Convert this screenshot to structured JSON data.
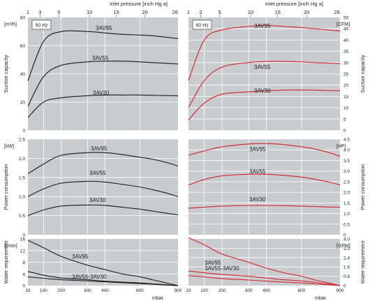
{
  "chart_data": [
    {
      "type": "line",
      "variant": "50 Hz",
      "hz_label": "50 Hz",
      "top_axis_title": "inlet pressure [inch Hg a]",
      "top_ticks": [
        "1",
        "3",
        "5",
        "10",
        "15",
        "20",
        "26"
      ],
      "x_ticks": [
        "33",
        "100",
        "200",
        "300",
        "400",
        "600",
        "900"
      ],
      "x_unit": "mbar",
      "x": [
        33,
        100,
        200,
        300,
        400,
        500,
        600,
        700,
        800,
        900
      ],
      "panels": [
        {
          "id": "suction",
          "ylabel": "Suction capacity",
          "yunit": "[m³/h]",
          "ylim": [
            0,
            80
          ],
          "yticks": [
            "0",
            "20",
            "40",
            "60",
            "80"
          ],
          "grid": true,
          "series": [
            {
              "name": "3AV95",
              "values": [
                35,
                63,
                70,
                70,
                69,
                68,
                67.5,
                67,
                66,
                65
              ]
            },
            {
              "name": "3AV55",
              "values": [
                17,
                38,
                46,
                48.5,
                49,
                49,
                48.5,
                48,
                47.5,
                47
              ]
            },
            {
              "name": "3AV30",
              "values": [
                9,
                20,
                23,
                24.5,
                25,
                25,
                25,
                24.8,
                24.6,
                24.4
              ]
            }
          ]
        },
        {
          "id": "power",
          "ylabel": "Power consumption",
          "yunit": "[kW]",
          "ylim": [
            0,
            2.5
          ],
          "yticks": [
            "0",
            "0.5",
            "1.0",
            "1.5",
            "2.0",
            "2.5"
          ],
          "grid": true,
          "series": [
            {
              "name": "3AV95",
              "values": [
                1.6,
                1.85,
                2.08,
                2.15,
                2.15,
                2.1,
                2.03,
                1.98,
                1.9,
                1.8
              ]
            },
            {
              "name": "3AV55",
              "values": [
                1.0,
                1.2,
                1.35,
                1.4,
                1.38,
                1.32,
                1.25,
                1.18,
                1.1,
                1.0
              ]
            },
            {
              "name": "3AV30",
              "values": [
                0.5,
                0.65,
                0.75,
                0.78,
                0.77,
                0.72,
                0.67,
                0.62,
                0.57,
                0.52
              ]
            }
          ]
        },
        {
          "id": "water",
          "ylabel": "Water requirement",
          "yunit": "[l/min]",
          "ylim": [
            0,
            16
          ],
          "yticks": [
            "0",
            "4",
            "8",
            "12",
            "16"
          ],
          "grid": true,
          "series": [
            {
              "name": "3AV95",
              "values": [
                15.5,
                13,
                10,
                7,
                5.5,
                4,
                3,
                2,
                1,
                0
              ]
            },
            {
              "name": "3AV55",
              "values": [
                4.8,
                3.6,
                2.6,
                2,
                1.5,
                1.2,
                0.9,
                0.6,
                0.3,
                0
              ]
            },
            {
              "name": "3AV30",
              "values": [
                3,
                2.5,
                2,
                1.6,
                1.3,
                1,
                0.7,
                0.5,
                0.2,
                0
              ]
            }
          ]
        }
      ],
      "labels": {
        "s95": "3AV95",
        "s55": "3AV55",
        "s30": "3AV30",
        "p95": "3AV95",
        "p55": "3AV55",
        "p30": "3AV30",
        "w95": "3AV95",
        "wmix": "3AV55-3AV30"
      },
      "colors": {
        "line": "#1a1a1a",
        "panel_bg": "#c9cbcf",
        "grid": "#ffffff"
      }
    },
    {
      "type": "line",
      "variant": "60 Hz",
      "hz_label": "60 Hz",
      "top_axis_title": "inlet pressure [inch Hg a]",
      "top_ticks": [
        "1",
        "3",
        "5",
        "10",
        "15",
        "20",
        "26"
      ],
      "x_ticks": [
        "33",
        "100",
        "200",
        "300",
        "400",
        "600",
        "900"
      ],
      "x_unit": "mbar",
      "x": [
        33,
        100,
        200,
        300,
        400,
        500,
        600,
        700,
        800,
        900
      ],
      "panels": [
        {
          "id": "suction",
          "ylabel": "Suction capacity",
          "yunit": "[CFM]",
          "ylim": [
            0,
            50
          ],
          "yticks": [
            "0",
            "5",
            "10",
            "15",
            "20",
            "25",
            "30",
            "35",
            "40",
            "45",
            "50"
          ],
          "grid": true,
          "series": [
            {
              "name": "3AV95",
              "values": [
                22,
                40,
                44.5,
                46,
                46.5,
                46,
                45.5,
                45,
                44.5,
                44
              ]
            },
            {
              "name": "3AV55",
              "values": [
                10,
                22,
                28,
                30,
                30.5,
                30.5,
                30.3,
                30,
                29.8,
                29.5
              ]
            },
            {
              "name": "3AV30",
              "values": [
                4.5,
                12,
                16,
                17,
                17.5,
                17.8,
                17.8,
                17.8,
                17.6,
                17.5
              ]
            }
          ]
        },
        {
          "id": "power",
          "ylabel": "Power consumption",
          "yunit": "[HP]",
          "ylim": [
            0,
            4.5
          ],
          "yticks": [
            "0",
            "0.5",
            "1.0",
            "1.5",
            "2.0",
            "2.5",
            "3.0",
            "3.5",
            "4.0",
            "4.5"
          ],
          "grid": true,
          "series": [
            {
              "name": "3AV95",
              "values": [
                3.75,
                3.95,
                4.15,
                4.28,
                4.3,
                4.25,
                4.15,
                4.05,
                3.9,
                3.7
              ]
            },
            {
              "name": "3AV55",
              "values": [
                2.35,
                2.6,
                2.78,
                2.85,
                2.85,
                2.8,
                2.72,
                2.62,
                2.5,
                2.35
              ]
            },
            {
              "name": "3AV30",
              "values": [
                1.25,
                1.3,
                1.35,
                1.38,
                1.38,
                1.37,
                1.35,
                1.33,
                1.31,
                1.3
              ]
            }
          ]
        },
        {
          "id": "water",
          "ylabel": "Water requirement",
          "yunit": "[GPM]",
          "ylim": [
            0,
            4
          ],
          "yticks": [
            "0",
            "0.8",
            "1.6",
            "2.4",
            "3.2",
            "4.0"
          ],
          "grid": true,
          "series": [
            {
              "name": "3AV95",
              "values": [
                4.1,
                3.5,
                2.7,
                2.0,
                1.5,
                1.1,
                0.8,
                0.5,
                0.25,
                0
              ]
            },
            {
              "name": "3AV55",
              "values": [
                1.25,
                1.1,
                0.95,
                0.8,
                0.65,
                0.5,
                0.4,
                0.28,
                0.15,
                0
              ]
            },
            {
              "name": "3AV30",
              "values": [
                0.85,
                0.75,
                0.6,
                0.48,
                0.38,
                0.3,
                0.22,
                0.15,
                0.08,
                0
              ]
            }
          ]
        }
      ],
      "labels": {
        "s95": "3AV95",
        "s55": "3AV55",
        "s30": "3AV30",
        "p95": "3AV95",
        "p55": "3AV55",
        "p30": "3AV30",
        "w95": "3AV95",
        "wmix": "3AV55-3AV30"
      },
      "colors": {
        "line": "#d2232a",
        "panel_bg": "#c9cbcf",
        "grid": "#ffffff"
      }
    }
  ]
}
